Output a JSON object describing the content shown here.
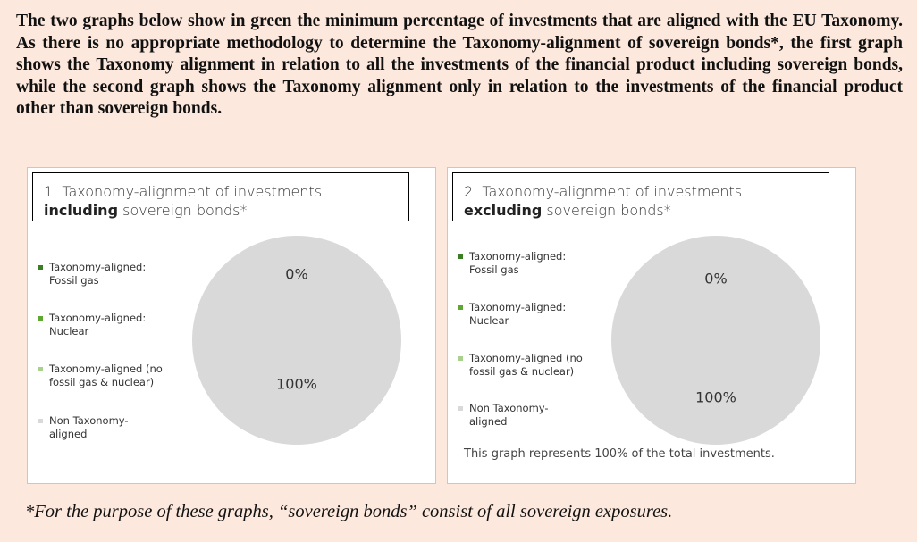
{
  "intro": "The two graphs below show in green the minimum percentage of investments that are aligned with the EU Taxonomy. As there is no appropriate methodology to determine the Taxonomy-alignment of sovereign bonds*, the first graph shows the Taxonomy alignment in relation to all the investments of the financial product including sovereign bonds, while the second graph shows the Taxonomy alignment only in relation to the investments of the financial product other than sovereign bonds.",
  "chart_data": [
    {
      "type": "pie",
      "title": [
        "1. Taxonomy-alignment of investments",
        "including",
        "sovereign bonds*"
      ],
      "categories": [
        "Taxonomy-aligned:\nFossil gas",
        "Taxonomy-aligned:\nNuclear",
        "Taxonomy-aligned (no\nfossil gas & nuclear)",
        "Non Taxonomy-\naligned"
      ],
      "values": [
        0,
        0,
        0,
        100
      ],
      "value_labels": [
        "0%",
        null,
        null,
        "100%"
      ],
      "colors": [
        "#3b7d23",
        "#5ea832",
        "#a9d18e",
        "#d9d9d9"
      ]
    },
    {
      "type": "pie",
      "title": [
        "2. Taxonomy-alignment of investments",
        "excluding",
        "sovereign bonds*"
      ],
      "categories": [
        "Taxonomy-aligned:\nFossil gas",
        "Taxonomy-aligned:\nNuclear",
        "Taxonomy-aligned (no\nfossil gas & nuclear)",
        "Non Taxonomy-\naligned"
      ],
      "values": [
        0,
        0,
        0,
        100
      ],
      "value_labels": [
        "0%",
        null,
        null,
        "100%"
      ],
      "colors": [
        "#3b7d23",
        "#5ea832",
        "#a9d18e",
        "#d9d9d9"
      ],
      "note": "This graph represents 100% of the total investments."
    }
  ],
  "footnote": "*For the purpose of these graphs, “sovereign bonds” consist of all sovereign exposures."
}
